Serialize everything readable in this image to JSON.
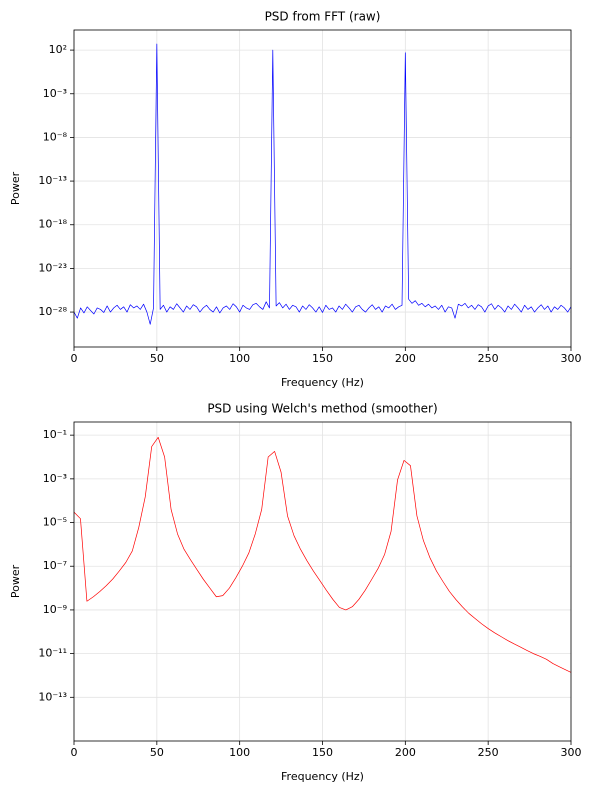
{
  "chart_data": [
    {
      "type": "line",
      "title": "PSD from FFT (raw)",
      "x_label": "Frequency (Hz)",
      "y_label": "Power",
      "yscale": "log",
      "grid": true,
      "xlim": [
        0,
        300
      ],
      "xticks": [
        0,
        50,
        100,
        150,
        200,
        250,
        300
      ],
      "ylim": [
        1e-32,
        20000
      ],
      "yticks": [
        {
          "value": 100,
          "label": "10²"
        },
        {
          "value": 0.001,
          "label": "10⁻³"
        },
        {
          "value": 1e-08,
          "label": "10⁻⁸"
        },
        {
          "value": 1e-13,
          "label": "10⁻¹³"
        },
        {
          "value": 1e-18,
          "label": "10⁻¹⁸"
        },
        {
          "value": 1e-23,
          "label": "10⁻²³"
        },
        {
          "value": 1e-28,
          "label": "10⁻²⁸"
        }
      ],
      "series": [
        {
          "color": "#0000ff",
          "x": [
            0,
            2,
            4,
            6,
            8,
            10,
            12,
            14,
            16,
            18,
            20,
            22,
            24,
            26,
            28,
            30,
            32,
            34,
            36,
            38,
            40,
            42,
            44,
            46,
            48,
            50,
            52,
            54,
            56,
            58,
            60,
            62,
            64,
            66,
            68,
            70,
            72,
            74,
            76,
            78,
            80,
            82,
            84,
            86,
            88,
            90,
            92,
            94,
            96,
            98,
            100,
            102,
            104,
            106,
            108,
            110,
            112,
            114,
            116,
            118,
            120,
            122,
            124,
            126,
            128,
            130,
            132,
            134,
            136,
            138,
            140,
            142,
            144,
            146,
            148,
            150,
            152,
            154,
            156,
            158,
            160,
            162,
            164,
            166,
            168,
            170,
            172,
            174,
            176,
            178,
            180,
            182,
            184,
            186,
            188,
            190,
            192,
            194,
            196,
            198,
            200,
            202,
            204,
            206,
            208,
            210,
            212,
            214,
            216,
            218,
            220,
            222,
            224,
            226,
            228,
            230,
            232,
            234,
            236,
            238,
            240,
            242,
            244,
            246,
            248,
            250,
            252,
            254,
            256,
            258,
            260,
            262,
            264,
            266,
            268,
            270,
            272,
            274,
            276,
            278,
            280,
            282,
            284,
            286,
            288,
            290,
            292,
            294,
            296,
            298,
            300
          ],
          "values": [
            1e-28,
            2e-29,
            3e-28,
            8e-29,
            4e-28,
            1.5e-28,
            6e-29,
            3e-28,
            2e-28,
            9e-29,
            5e-28,
            1e-28,
            3e-28,
            6e-28,
            2e-28,
            4e-28,
            1e-28,
            7e-28,
            3e-28,
            5e-28,
            2e-28,
            8e-28,
            1e-28,
            4e-30,
            3e-28,
            500,
            2e-28,
            6e-28,
            1e-28,
            4e-28,
            2e-28,
            9e-28,
            3e-28,
            1e-28,
            5e-28,
            2e-28,
            7e-28,
            4e-28,
            1e-28,
            3e-28,
            6e-28,
            2e-28,
            1e-28,
            4e-28,
            8e-29,
            3e-28,
            5e-28,
            2e-28,
            9e-28,
            4e-28,
            1e-28,
            6e-28,
            3e-28,
            2e-28,
            7e-28,
            1e-27,
            4e-28,
            2e-28,
            1.5e-27,
            3e-28,
            100,
            5e-28,
            1.2e-27,
            3e-28,
            8e-28,
            2e-28,
            6e-28,
            4e-28,
            1e-28,
            5e-28,
            2e-28,
            7e-28,
            3e-28,
            1e-28,
            4e-28,
            9e-29,
            6e-28,
            2e-28,
            3e-28,
            1e-28,
            5e-28,
            2e-28,
            8e-28,
            3e-28,
            1e-28,
            4e-28,
            6e-28,
            2e-28,
            1e-28,
            3e-28,
            7e-28,
            2e-28,
            4e-28,
            1e-28,
            5e-28,
            3e-28,
            8e-28,
            2e-28,
            4e-28,
            6e-28,
            50,
            3e-27,
            1e-27,
            2e-27,
            6e-28,
            1e-27,
            4e-28,
            8e-28,
            3e-28,
            5e-28,
            2e-28,
            6e-28,
            1e-28,
            4e-28,
            3e-28,
            2e-29,
            8e-28,
            5e-28,
            1e-27,
            3e-28,
            6e-28,
            2e-28,
            7e-28,
            4e-28,
            1e-28,
            5e-28,
            9e-28,
            2e-28,
            6e-28,
            3e-28,
            1e-28,
            5e-28,
            2e-28,
            8e-28,
            3e-28,
            1e-28,
            6e-28,
            2e-28,
            4e-28,
            1e-28,
            3e-28,
            7e-28,
            2e-28,
            5e-28,
            1e-28,
            4e-28,
            2e-28,
            6e-28,
            3e-28,
            1e-28,
            4e-28
          ]
        }
      ]
    },
    {
      "type": "line",
      "title": "PSD using Welch's method (smoother)",
      "x_label": "Frequency (Hz)",
      "y_label": "Power",
      "yscale": "log",
      "grid": true,
      "xlim": [
        0,
        300
      ],
      "xticks": [
        0,
        50,
        100,
        150,
        200,
        250,
        300
      ],
      "ylim": [
        1e-15,
        0.4
      ],
      "yticks": [
        {
          "value": 0.1,
          "label": "10⁻¹"
        },
        {
          "value": 0.001,
          "label": "10⁻³"
        },
        {
          "value": 1e-05,
          "label": "10⁻⁵"
        },
        {
          "value": 1e-07,
          "label": "10⁻⁷"
        },
        {
          "value": 1e-09,
          "label": "10⁻⁹"
        },
        {
          "value": 1e-11,
          "label": "10⁻¹¹"
        },
        {
          "value": 1e-13,
          "label": "10⁻¹³"
        }
      ],
      "series": [
        {
          "color": "#ff0000",
          "x": [
            0,
            3.9,
            7.8,
            11.7,
            15.6,
            19.5,
            23.4,
            27.3,
            31.3,
            35.2,
            39.1,
            43,
            46.9,
            50.8,
            54.7,
            58.6,
            62.5,
            66.4,
            70.3,
            74.2,
            78.1,
            82,
            85.9,
            89.8,
            93.8,
            97.7,
            101.6,
            105.5,
            109.4,
            113.3,
            117.2,
            121.1,
            125,
            128.9,
            132.8,
            136.7,
            140.6,
            144.5,
            148.4,
            152.3,
            156.3,
            160.2,
            164.1,
            168,
            171.9,
            175.8,
            179.7,
            183.6,
            187.5,
            191.4,
            195.3,
            199.2,
            203.1,
            207,
            210.9,
            214.8,
            218.8,
            222.7,
            226.6,
            230.5,
            234.4,
            238.3,
            242.2,
            246.1,
            250,
            253.9,
            257.8,
            261.7,
            265.6,
            269.5,
            273.4,
            277.3,
            281.3,
            285.2,
            289.1,
            293,
            296.9,
            300.8
          ],
          "values": [
            3e-05,
            1.5e-05,
            2.5e-09,
            4e-09,
            7e-09,
            1.3e-08,
            2.6e-08,
            6e-08,
            1.5e-07,
            5e-07,
            6e-06,
            0.00015,
            0.03,
            0.08,
            0.01,
            4e-05,
            3e-06,
            6e-07,
            2e-07,
            7e-08,
            2.5e-08,
            1e-08,
            4e-09,
            4.5e-09,
            1e-08,
            3e-08,
            1e-07,
            4e-07,
            3e-06,
            4e-05,
            0.01,
            0.018,
            0.002,
            2e-05,
            2.5e-06,
            6e-07,
            1.8e-07,
            6e-08,
            2.2e-08,
            8e-09,
            3e-09,
            1.3e-09,
            1e-09,
            1.4e-09,
            3e-09,
            8e-09,
            2.5e-08,
            8e-08,
            3.5e-07,
            4e-06,
            0.0009,
            0.007,
            0.004,
            2e-05,
            1.5e-06,
            2.5e-07,
            6e-08,
            2e-08,
            7e-09,
            3e-09,
            1.4e-09,
            7e-10,
            4e-10,
            2.3e-10,
            1.4e-10,
            9e-11,
            6e-11,
            4e-11,
            2.8e-11,
            2e-11,
            1.4e-11,
            1e-11,
            7.5e-12,
            5.5e-12,
            3.5e-12,
            2.5e-12,
            1.8e-12,
            1.3e-12
          ]
        }
      ]
    }
  ]
}
